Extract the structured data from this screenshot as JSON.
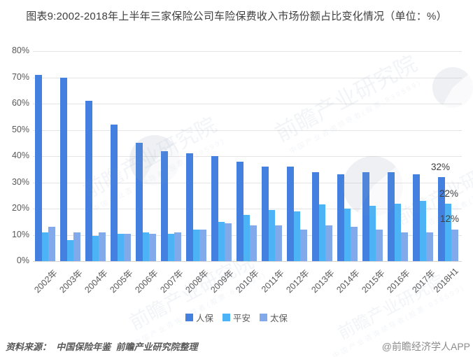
{
  "title": "图表9:2002-2018年上半年三家保险公司车险保费收入市场份额占比变化情况（单位：%）",
  "chart_data": {
    "type": "bar",
    "title": "图表9:2002-2018年上半年三家保险公司车险保费收入市场份额占比变化情况（单位：%）",
    "categories": [
      "2002年",
      "2003年",
      "2004年",
      "2005年",
      "2006年",
      "2007年",
      "2008年",
      "2009年",
      "2010年",
      "2011年",
      "2012年",
      "2013年",
      "2014年",
      "2015年",
      "2016年",
      "2017年",
      "2018H1"
    ],
    "series": [
      {
        "name": "人保",
        "color": "#4380df",
        "values": [
          71,
          70,
          61,
          52,
          45,
          42,
          41,
          40,
          38,
          36,
          36,
          34,
          33,
          34,
          34,
          33,
          32
        ]
      },
      {
        "name": "平安",
        "color": "#4cb4f6",
        "values": [
          11,
          8,
          9.5,
          10.5,
          11,
          10.5,
          12,
          15,
          17.5,
          19.5,
          19,
          21.5,
          20,
          21,
          22,
          23,
          22
        ]
      },
      {
        "name": "太保",
        "color": "#82aaeb",
        "values": [
          13,
          11,
          11,
          10.5,
          10.5,
          11,
          12,
          14.5,
          13.5,
          13.5,
          12,
          13.5,
          13,
          12,
          11,
          11,
          12
        ]
      }
    ],
    "xlabel": "",
    "ylabel": "",
    "ylim": [
      0,
      80
    ],
    "ytick_step": 10,
    "yticks": [
      "0%",
      "10%",
      "20%",
      "30%",
      "40%",
      "50%",
      "60%",
      "70%",
      "80%"
    ],
    "grid": true,
    "legend_position": "bottom",
    "annotations": [
      {
        "category": "2018H1",
        "series": "人保",
        "text": "32%"
      },
      {
        "category": "2018H1",
        "series": "平安",
        "text": "22%"
      },
      {
        "category": "2018H1",
        "series": "太保",
        "text": "12%"
      }
    ]
  },
  "footer": {
    "source": "资料来源：  中国保险年鉴  前瞻产业研究院整理",
    "credit": "@前瞻经济学人APP"
  },
  "watermark": {
    "text": "前瞻产业研究院",
    "sub": "中国产业咨询领导者(股票:839599)"
  },
  "colors": {
    "grid": "#e4e4e4",
    "axis_text": "#595959",
    "title_text": "#3f3f3f"
  }
}
